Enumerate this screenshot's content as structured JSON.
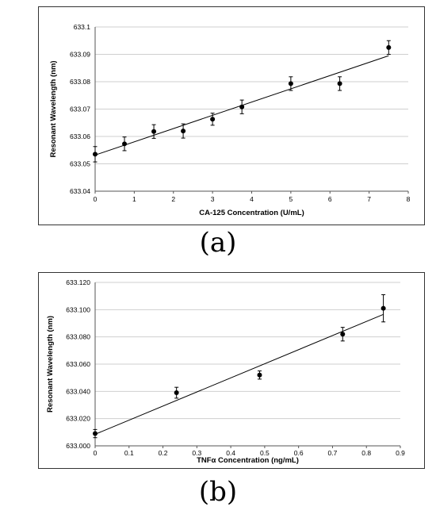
{
  "chart_data": [
    {
      "type": "scatter",
      "panel_label": "(a)",
      "xlabel": "CA-125 Concentration (U/mL)",
      "ylabel": "Resonant Wavelength (nm)",
      "xlim": [
        0,
        8
      ],
      "ylim": [
        633.04,
        633.1
      ],
      "x_ticks": [
        "0",
        "1",
        "2",
        "3",
        "4",
        "5",
        "6",
        "7",
        "8"
      ],
      "y_ticks": [
        "633.04",
        "633.05",
        "633.06",
        "633.07",
        "633.08",
        "633.09",
        "633.1"
      ],
      "grid": "horizontal",
      "x": [
        0,
        0.75,
        1.5,
        2.25,
        3.0,
        3.75,
        5.0,
        6.25,
        7.5
      ],
      "y": [
        633.0535,
        633.0573,
        633.0618,
        633.062,
        633.0663,
        633.0708,
        633.0793,
        633.0793,
        633.0925
      ],
      "error": [
        0.0028,
        0.0025,
        0.0025,
        0.0026,
        0.0022,
        0.0025,
        0.0025,
        0.0025,
        0.0025
      ],
      "trendline": {
        "x": [
          0,
          7.5
        ],
        "y": [
          633.0532,
          633.0895
        ]
      }
    },
    {
      "type": "scatter",
      "panel_label": "(b)",
      "xlabel": "TNFα Concentration (ng/mL)",
      "ylabel": "Resonant Wavelength (nm)",
      "xlim": [
        0,
        0.9
      ],
      "ylim": [
        633.0,
        633.12
      ],
      "x_ticks": [
        "0",
        "0.1",
        "0.2",
        "0.3",
        "0.4",
        "0.5",
        "0.6",
        "0.7",
        "0.8",
        "0.9"
      ],
      "y_ticks": [
        "633.000",
        "633.020",
        "633.040",
        "633.060",
        "633.080",
        "633.100",
        "633.120"
      ],
      "grid": "horizontal",
      "x": [
        0,
        0.24,
        0.485,
        0.73,
        0.85
      ],
      "y": [
        633.009,
        633.039,
        633.052,
        633.082,
        633.101
      ],
      "error": [
        0.003,
        0.004,
        0.003,
        0.005,
        0.01
      ],
      "trendline": {
        "x": [
          0,
          0.85
        ],
        "y": [
          633.0085,
          633.0965
        ]
      }
    }
  ]
}
